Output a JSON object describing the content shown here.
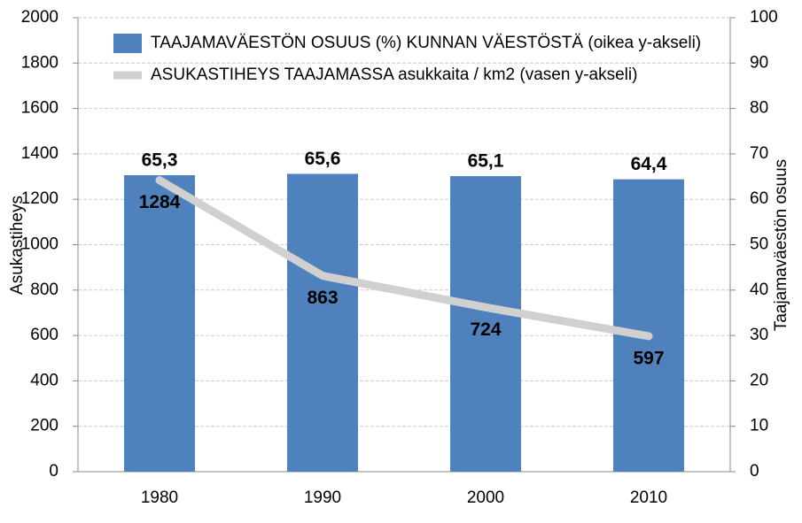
{
  "chart_data": {
    "type": "bar",
    "y_label": "Asukastiheys",
    "y2_label": "Taajamaväestön osuus",
    "categories": [
      "1980",
      "1990",
      "2000",
      "2010"
    ],
    "series": [
      {
        "name": "TAAJAMAVÄESTÖN OSUUS (%) KUNNAN VÄESTÖSTÄ (oikea y-akseli)",
        "type": "bar",
        "axis": "y2",
        "color": "#4f81bd",
        "values": [
          65.3,
          65.6,
          65.1,
          64.4
        ],
        "value_labels": [
          "65,3",
          "65,6",
          "65,1",
          "64,4"
        ]
      },
      {
        "name": "ASUKASTIHEYS TAAJAMASSA asukkaita / km2  (vasen y-akseli)",
        "type": "line",
        "color": "#d0d0d0",
        "values": [
          1284,
          863,
          724,
          597
        ]
      }
    ],
    "ylim": [
      0,
      2000
    ],
    "yticks": [
      0,
      200,
      400,
      600,
      800,
      1000,
      1200,
      1400,
      1600,
      1800,
      2000
    ],
    "y2lim": [
      0,
      100
    ],
    "y2ticks": [
      0,
      10,
      20,
      30,
      40,
      50,
      60,
      70,
      80,
      90,
      100
    ],
    "grid": true
  }
}
